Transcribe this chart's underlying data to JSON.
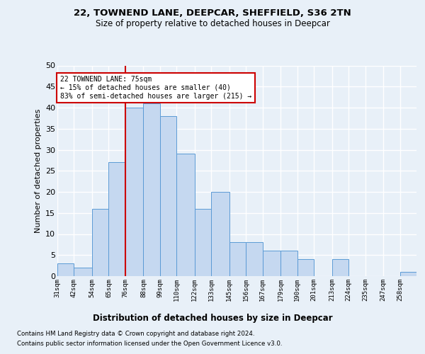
{
  "title1": "22, TOWNEND LANE, DEEPCAR, SHEFFIELD, S36 2TN",
  "title2": "Size of property relative to detached houses in Deepcar",
  "xlabel": "Distribution of detached houses by size in Deepcar",
  "ylabel": "Number of detached properties",
  "categories": [
    "31sqm",
    "42sqm",
    "54sqm",
    "65sqm",
    "76sqm",
    "88sqm",
    "99sqm",
    "110sqm",
    "122sqm",
    "133sqm",
    "145sqm",
    "156sqm",
    "167sqm",
    "179sqm",
    "190sqm",
    "201sqm",
    "213sqm",
    "224sqm",
    "235sqm",
    "247sqm",
    "258sqm"
  ],
  "values": [
    3,
    2,
    16,
    27,
    40,
    41,
    38,
    29,
    16,
    20,
    8,
    8,
    6,
    6,
    4,
    0,
    4,
    0,
    0,
    0,
    1
  ],
  "bar_color": "#c5d8f0",
  "bar_edge_color": "#5b9bd5",
  "marker_label": "22 TOWNEND LANE: 75sqm",
  "annotation_line1": "← 15% of detached houses are smaller (40)",
  "annotation_line2": "83% of semi-detached houses are larger (215) →",
  "annotation_box_color": "#ffffff",
  "annotation_box_edge": "#cc0000",
  "marker_line_color": "#cc0000",
  "ylim": [
    0,
    50
  ],
  "yticks": [
    0,
    5,
    10,
    15,
    20,
    25,
    30,
    35,
    40,
    45,
    50
  ],
  "background_color": "#e8f0f8",
  "plot_background": "#e8f0f8",
  "grid_color": "#ffffff",
  "footer1": "Contains HM Land Registry data © Crown copyright and database right 2024.",
  "footer2": "Contains public sector information licensed under the Open Government Licence v3.0.",
  "bin_edges": [
    31,
    42,
    54,
    65,
    76,
    88,
    99,
    110,
    122,
    133,
    145,
    156,
    167,
    179,
    190,
    201,
    213,
    224,
    235,
    247,
    258,
    269
  ]
}
